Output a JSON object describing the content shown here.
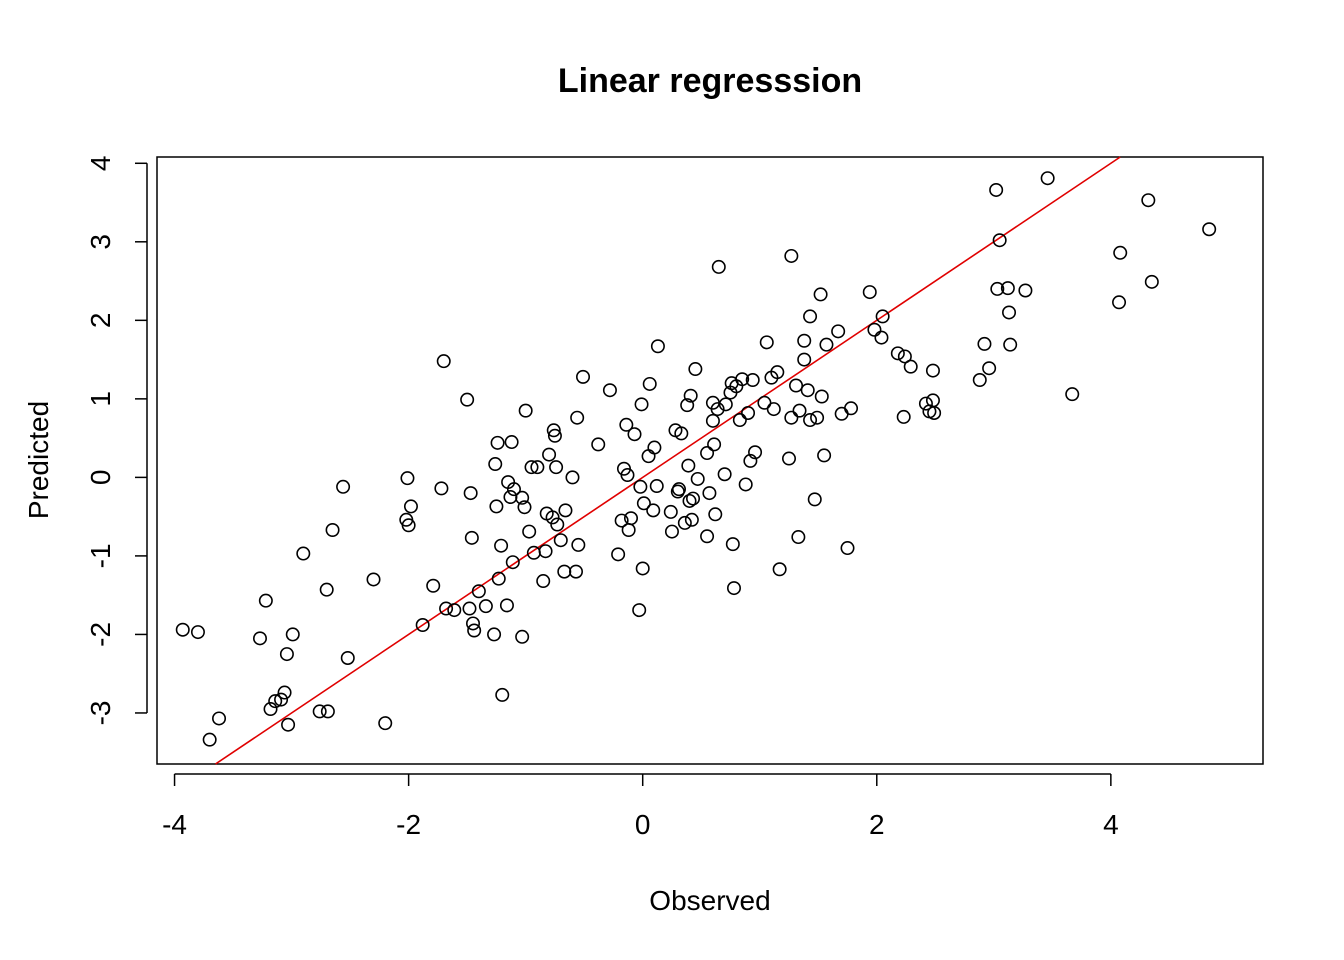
{
  "chart_data": {
    "type": "scatter",
    "title": "Linear regresssion",
    "xlabel": "Observed",
    "ylabel": "Predicted",
    "xlim": [
      -4.15,
      5.3
    ],
    "ylim": [
      -3.65,
      4.08
    ],
    "xticks": [
      -4,
      -2,
      0,
      2,
      4
    ],
    "yticks": [
      -3,
      -2,
      -1,
      0,
      1,
      2,
      3,
      4
    ],
    "xtick_labels": [
      "-4",
      "-2",
      "0",
      "2",
      "4"
    ],
    "ytick_labels": [
      "-3",
      "-2",
      "-1",
      "0",
      "1",
      "2",
      "3",
      "4"
    ],
    "grid": false,
    "point_style": "open-circle",
    "point_color": "#000000",
    "line_color": "#e00000",
    "fit_line": {
      "slope": 1.0,
      "intercept": 0.0
    },
    "points": [
      [
        -3.93,
        -1.94
      ],
      [
        -3.8,
        -1.97
      ],
      [
        -3.7,
        -3.34
      ],
      [
        -3.62,
        -3.07
      ],
      [
        -3.27,
        -2.05
      ],
      [
        -3.22,
        -1.57
      ],
      [
        -3.18,
        -2.95
      ],
      [
        -3.14,
        -2.85
      ],
      [
        -3.09,
        -2.83
      ],
      [
        -3.06,
        -2.74
      ],
      [
        -3.04,
        -2.25
      ],
      [
        -3.03,
        -3.15
      ],
      [
        -2.99,
        -2.0
      ],
      [
        -2.9,
        -0.97
      ],
      [
        -2.76,
        -2.98
      ],
      [
        -2.7,
        -1.43
      ],
      [
        -2.69,
        -2.98
      ],
      [
        -2.65,
        -0.67
      ],
      [
        -2.56,
        -0.12
      ],
      [
        -2.52,
        -2.3
      ],
      [
        -2.3,
        -1.3
      ],
      [
        -2.2,
        -3.13
      ],
      [
        -2.02,
        -0.54
      ],
      [
        -2.01,
        -0.01
      ],
      [
        -2.0,
        -0.61
      ],
      [
        -1.98,
        -0.37
      ],
      [
        -1.88,
        -1.88
      ],
      [
        -1.79,
        -1.38
      ],
      [
        -1.72,
        -0.14
      ],
      [
        -1.7,
        1.48
      ],
      [
        -1.68,
        -1.67
      ],
      [
        -1.61,
        -1.69
      ],
      [
        -1.5,
        0.99
      ],
      [
        -1.48,
        -1.67
      ],
      [
        -1.47,
        -0.2
      ],
      [
        -1.46,
        -0.77
      ],
      [
        -1.45,
        -1.86
      ],
      [
        -1.44,
        -1.95
      ],
      [
        -1.4,
        -1.45
      ],
      [
        -1.34,
        -1.64
      ],
      [
        -1.26,
        0.17
      ],
      [
        -1.25,
        -0.37
      ],
      [
        -1.24,
        0.44
      ],
      [
        -1.23,
        -1.29
      ],
      [
        -1.21,
        -0.87
      ],
      [
        -1.2,
        -2.77
      ],
      [
        -1.16,
        -1.63
      ],
      [
        -1.15,
        -0.06
      ],
      [
        -1.13,
        -0.25
      ],
      [
        -1.12,
        0.45
      ],
      [
        -1.11,
        -1.08
      ],
      [
        -1.1,
        -0.15
      ],
      [
        -1.03,
        -0.26
      ],
      [
        -1.01,
        -0.38
      ],
      [
        -1.03,
        -2.03
      ],
      [
        -1.27,
        -2.0
      ],
      [
        -1.0,
        0.85
      ],
      [
        -0.97,
        -0.69
      ],
      [
        -0.95,
        0.13
      ],
      [
        -0.93,
        -0.96
      ],
      [
        -0.9,
        0.13
      ],
      [
        -0.85,
        -1.32
      ],
      [
        -0.83,
        -0.94
      ],
      [
        -0.82,
        -0.46
      ],
      [
        -0.8,
        0.29
      ],
      [
        -0.77,
        -0.51
      ],
      [
        -0.76,
        0.6
      ],
      [
        -0.75,
        0.53
      ],
      [
        -0.74,
        0.13
      ],
      [
        -0.73,
        -0.6
      ],
      [
        -0.7,
        -0.8
      ],
      [
        -0.67,
        -1.2
      ],
      [
        -0.66,
        -0.42
      ],
      [
        -0.6,
        0.0
      ],
      [
        -0.57,
        -1.2
      ],
      [
        -0.56,
        0.76
      ],
      [
        -0.55,
        -0.86
      ],
      [
        -0.51,
        1.28
      ],
      [
        -0.38,
        0.42
      ],
      [
        -0.28,
        1.11
      ],
      [
        -0.21,
        -0.98
      ],
      [
        -0.18,
        -0.55
      ],
      [
        -0.16,
        0.11
      ],
      [
        -0.13,
        0.03
      ],
      [
        -0.14,
        0.67
      ],
      [
        -0.12,
        -0.67
      ],
      [
        -0.1,
        -0.52
      ],
      [
        -0.07,
        0.55
      ],
      [
        -0.03,
        -1.69
      ],
      [
        -0.02,
        -0.12
      ],
      [
        -0.01,
        0.93
      ],
      [
        0.0,
        -1.16
      ],
      [
        0.01,
        -0.33
      ],
      [
        0.05,
        0.27
      ],
      [
        0.06,
        1.19
      ],
      [
        0.09,
        -0.42
      ],
      [
        0.1,
        0.38
      ],
      [
        0.12,
        -0.11
      ],
      [
        0.13,
        1.67
      ],
      [
        0.24,
        -0.44
      ],
      [
        0.25,
        -0.69
      ],
      [
        0.28,
        0.6
      ],
      [
        0.3,
        -0.18
      ],
      [
        0.31,
        -0.15
      ],
      [
        0.33,
        0.56
      ],
      [
        0.36,
        -0.58
      ],
      [
        0.38,
        0.92
      ],
      [
        0.39,
        0.15
      ],
      [
        0.4,
        -0.3
      ],
      [
        0.41,
        1.04
      ],
      [
        0.42,
        -0.54
      ],
      [
        0.43,
        -0.27
      ],
      [
        0.45,
        1.38
      ],
      [
        0.47,
        -0.02
      ],
      [
        0.55,
        0.31
      ],
      [
        0.55,
        -0.75
      ],
      [
        0.57,
        -0.2
      ],
      [
        0.6,
        0.72
      ],
      [
        0.6,
        0.95
      ],
      [
        0.61,
        0.42
      ],
      [
        0.62,
        -0.47
      ],
      [
        0.64,
        0.87
      ],
      [
        0.65,
        2.68
      ],
      [
        0.7,
        0.04
      ],
      [
        0.71,
        0.93
      ],
      [
        0.75,
        1.08
      ],
      [
        0.76,
        1.2
      ],
      [
        0.77,
        -0.85
      ],
      [
        0.78,
        -1.41
      ],
      [
        0.8,
        1.16
      ],
      [
        0.83,
        0.73
      ],
      [
        0.85,
        1.25
      ],
      [
        0.88,
        -0.09
      ],
      [
        0.9,
        0.82
      ],
      [
        0.92,
        0.21
      ],
      [
        0.94,
        1.24
      ],
      [
        0.96,
        0.32
      ],
      [
        1.04,
        0.95
      ],
      [
        1.06,
        1.72
      ],
      [
        1.1,
        1.27
      ],
      [
        1.12,
        0.87
      ],
      [
        1.15,
        1.34
      ],
      [
        1.17,
        -1.17
      ],
      [
        1.25,
        0.24
      ],
      [
        1.27,
        0.76
      ],
      [
        1.27,
        2.82
      ],
      [
        1.31,
        1.17
      ],
      [
        1.33,
        -0.76
      ],
      [
        1.34,
        0.85
      ],
      [
        1.38,
        1.5
      ],
      [
        1.38,
        1.74
      ],
      [
        1.41,
        1.11
      ],
      [
        1.43,
        2.05
      ],
      [
        1.43,
        0.73
      ],
      [
        1.47,
        -0.28
      ],
      [
        1.49,
        0.76
      ],
      [
        1.52,
        2.33
      ],
      [
        1.53,
        1.03
      ],
      [
        1.55,
        0.28
      ],
      [
        1.57,
        1.69
      ],
      [
        1.67,
        1.86
      ],
      [
        1.7,
        0.81
      ],
      [
        1.75,
        -0.9
      ],
      [
        1.78,
        0.88
      ],
      [
        1.94,
        2.36
      ],
      [
        1.98,
        1.88
      ],
      [
        2.04,
        1.78
      ],
      [
        2.05,
        2.05
      ],
      [
        2.18,
        1.58
      ],
      [
        2.23,
        0.77
      ],
      [
        2.24,
        1.54
      ],
      [
        2.29,
        1.41
      ],
      [
        2.42,
        0.94
      ],
      [
        2.45,
        0.84
      ],
      [
        2.48,
        0.98
      ],
      [
        2.48,
        1.36
      ],
      [
        2.49,
        0.82
      ],
      [
        2.88,
        1.24
      ],
      [
        2.92,
        1.7
      ],
      [
        2.96,
        1.39
      ],
      [
        3.02,
        3.66
      ],
      [
        3.03,
        2.4
      ],
      [
        3.05,
        3.02
      ],
      [
        3.12,
        2.41
      ],
      [
        3.13,
        2.1
      ],
      [
        3.14,
        1.69
      ],
      [
        3.27,
        2.38
      ],
      [
        3.46,
        3.81
      ],
      [
        3.67,
        1.06
      ],
      [
        4.07,
        2.23
      ],
      [
        4.08,
        2.86
      ],
      [
        4.32,
        3.53
      ],
      [
        4.35,
        2.49
      ],
      [
        4.84,
        3.16
      ]
    ]
  }
}
